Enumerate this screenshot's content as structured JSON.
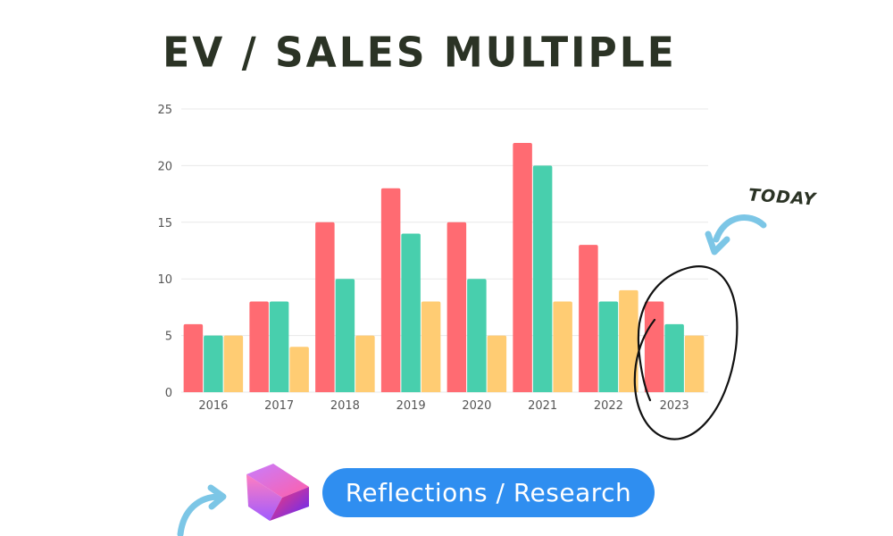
{
  "title": "EV / SALES MULTIPLE",
  "annotation": "TODAY",
  "brand": "Reflections / Research",
  "colors": {
    "series": [
      "#ff6b72",
      "#48cfad",
      "#ffcc73"
    ],
    "grid": "#e8e8e8",
    "pill": "#2f8ef0",
    "arrow": "#7cc6e6"
  },
  "icons": {
    "logo": "cube-icon",
    "arrow": "curved-arrow-icon"
  },
  "chart_data": {
    "type": "bar",
    "categories": [
      "2016",
      "2017",
      "2018",
      "2019",
      "2020",
      "2021",
      "2022",
      "2023"
    ],
    "series": [
      {
        "values": [
          6,
          8,
          15,
          18,
          15,
          22,
          13,
          8
        ]
      },
      {
        "values": [
          5,
          8,
          10,
          14,
          10,
          20,
          8,
          6
        ]
      },
      {
        "values": [
          5,
          4,
          5,
          8,
          5,
          8,
          9,
          5
        ]
      }
    ],
    "yticks": [
      "0",
      "5",
      "10",
      "15",
      "20",
      "25"
    ],
    "ylim": [
      0,
      25
    ],
    "grid": true,
    "title": "EV / SALES MULTIPLE",
    "xlabel": "",
    "ylabel": ""
  }
}
